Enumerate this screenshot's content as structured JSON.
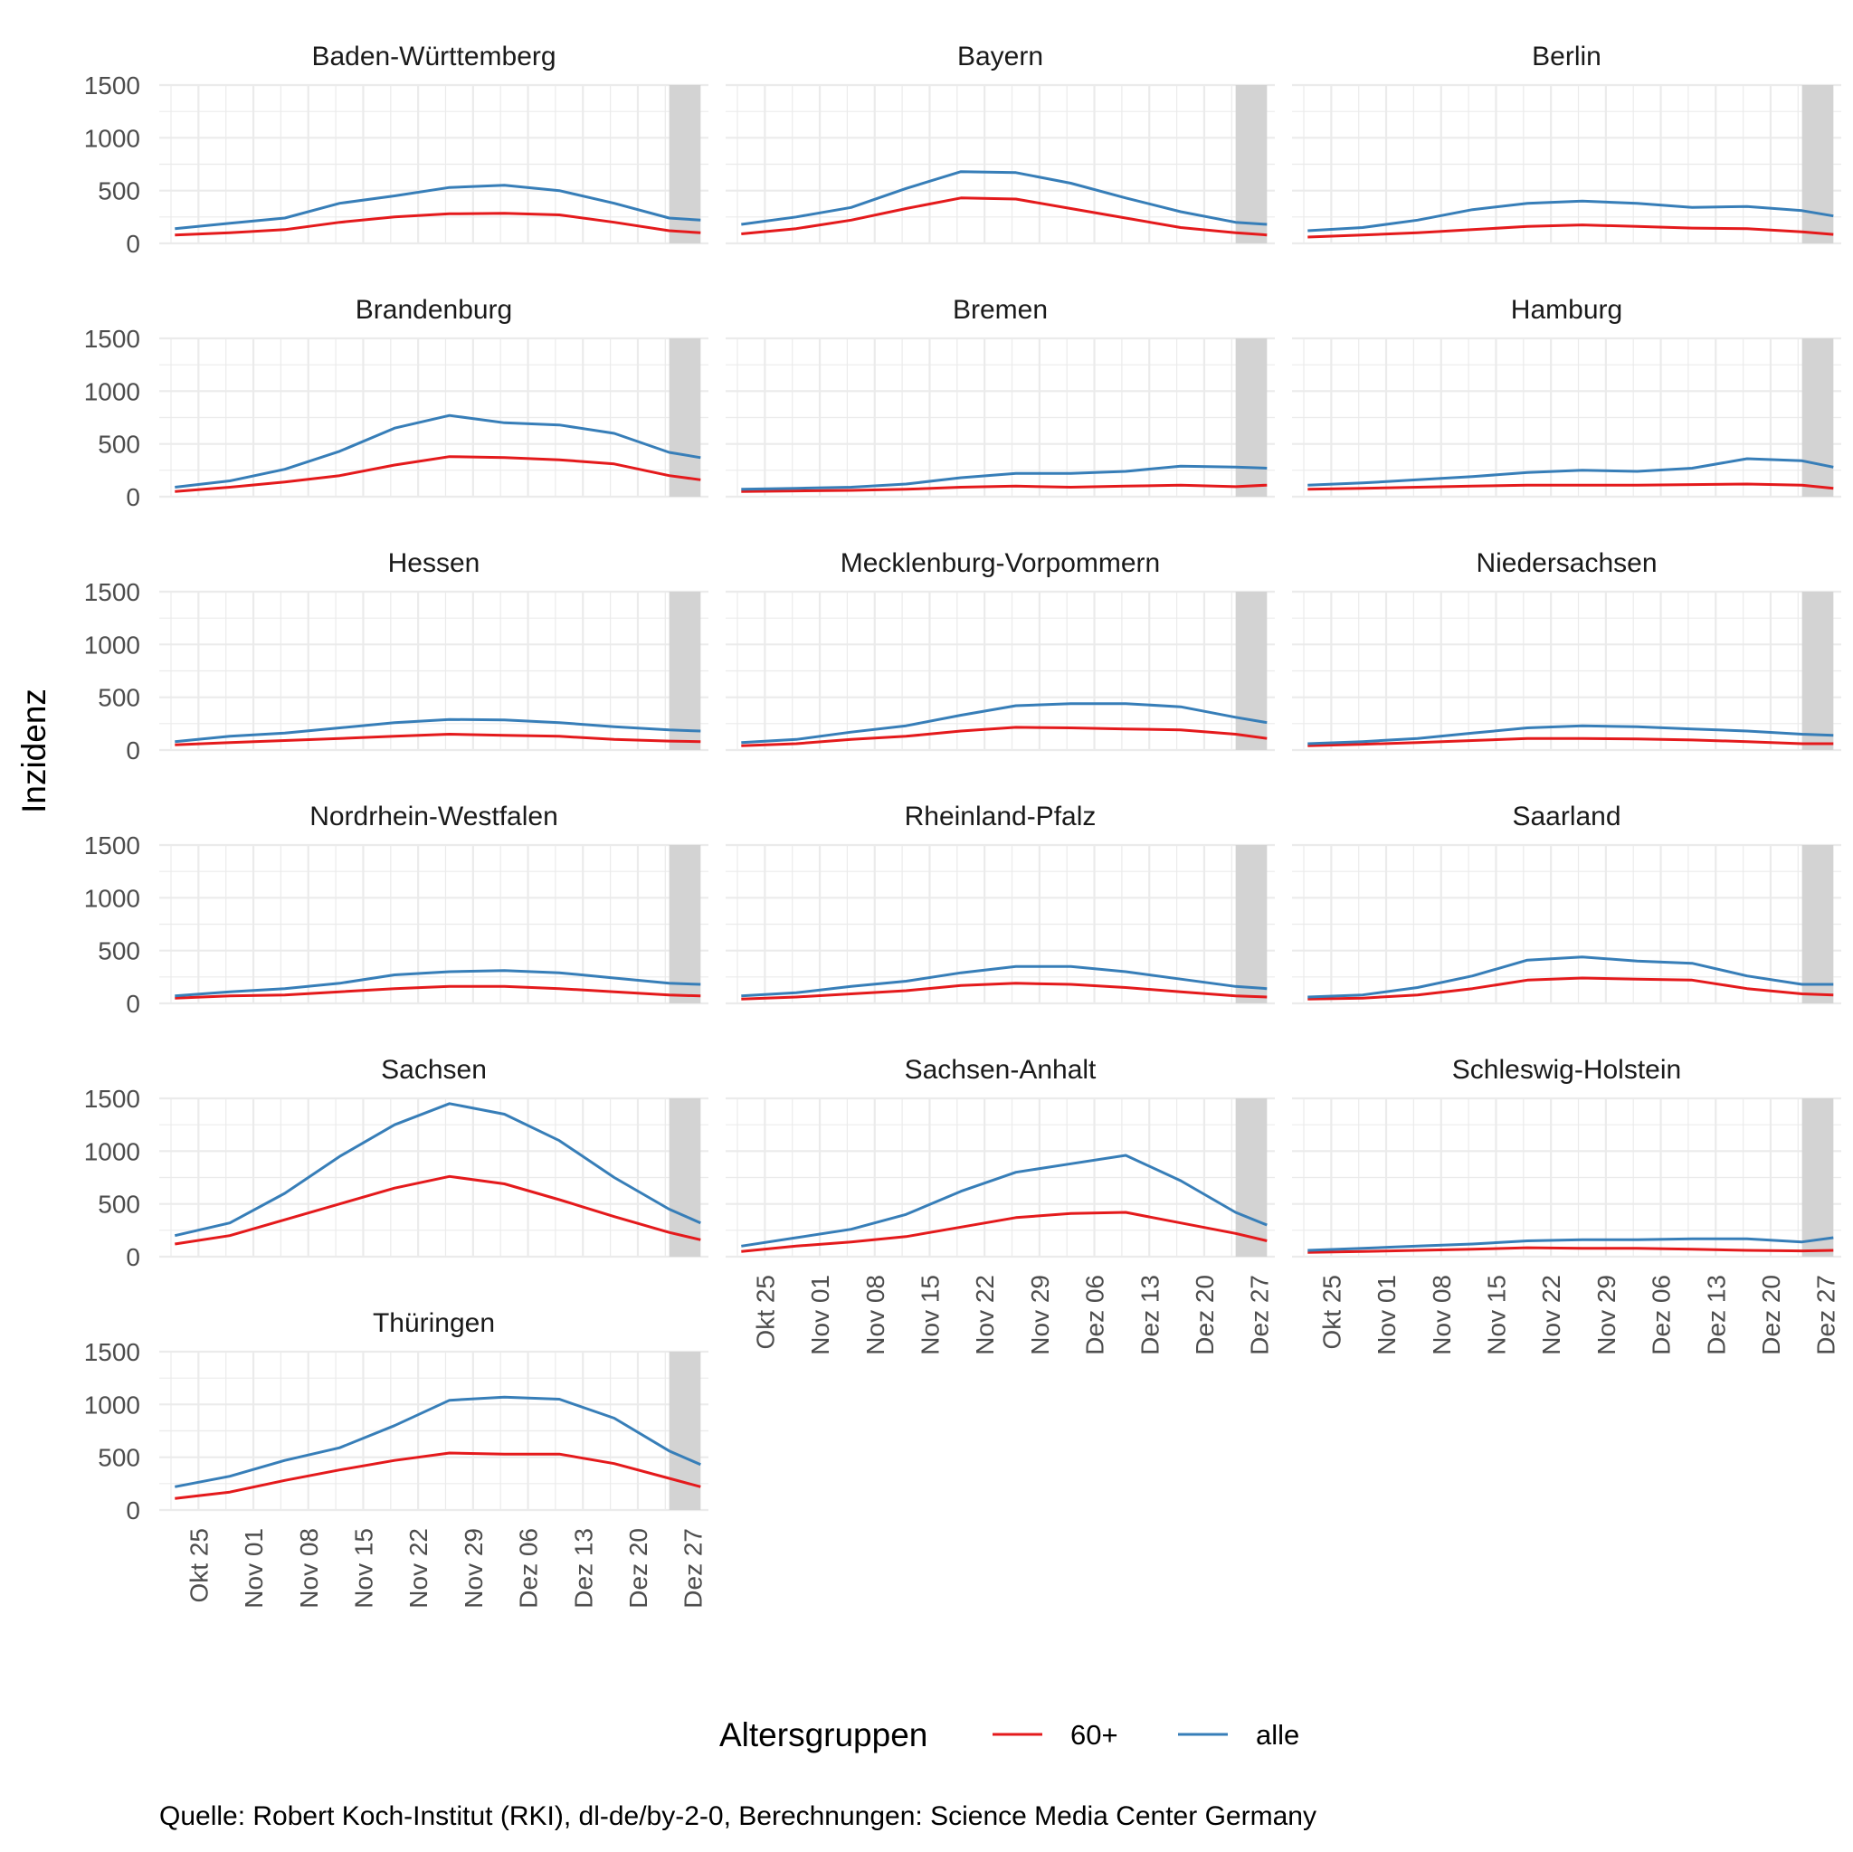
{
  "figure": {
    "ylabel": "Inzidenz",
    "legend_title": "Altersgruppen",
    "caption": "Quelle: Robert Koch-Institut (RKI), dl-de/by-2-0, Berechnungen: Science Media Center Germany",
    "colors": {
      "60+": "#e41a1c",
      "alle": "#377eb8",
      "highlight": "#d3d3d3",
      "grid": "#ebebeb",
      "text": "#4d4d4d"
    }
  },
  "chart_data": {
    "type": "line",
    "layout": "facet-grid",
    "x_range": [
      "2021-10-20",
      "2021-12-29"
    ],
    "x_ticks": [
      "Okt 25",
      "Nov 01",
      "Nov 08",
      "Nov 15",
      "Nov 22",
      "Nov 29",
      "Dez 06",
      "Dez 13",
      "Dez 20",
      "Dez 27"
    ],
    "y_ticks": [
      0,
      500,
      1000,
      1500
    ],
    "ylim": [
      0,
      1500
    ],
    "highlight_range": [
      "2021-12-24",
      "2021-12-28"
    ],
    "grid": true,
    "legend_position": "bottom",
    "series_names": [
      "60+",
      "alle"
    ],
    "dates": [
      "2021-10-22",
      "2021-10-29",
      "2021-11-05",
      "2021-11-12",
      "2021-11-19",
      "2021-11-26",
      "2021-12-03",
      "2021-12-10",
      "2021-12-17",
      "2021-12-24",
      "2021-12-28"
    ],
    "panels": [
      {
        "title": "Baden-Württemberg",
        "series": [
          {
            "name": "60+",
            "values": [
              80,
              100,
              130,
              200,
              250,
              280,
              285,
              270,
              200,
              120,
              100
            ]
          },
          {
            "name": "alle",
            "values": [
              140,
              190,
              240,
              380,
              450,
              530,
              550,
              500,
              380,
              240,
              220
            ]
          }
        ]
      },
      {
        "title": "Bayern",
        "series": [
          {
            "name": "60+",
            "values": [
              90,
              140,
              220,
              330,
              430,
              420,
              330,
              240,
              150,
              100,
              80
            ]
          },
          {
            "name": "alle",
            "values": [
              180,
              250,
              340,
              520,
              680,
              670,
              570,
              430,
              300,
              200,
              180
            ]
          }
        ]
      },
      {
        "title": "Berlin",
        "series": [
          {
            "name": "60+",
            "values": [
              60,
              80,
              100,
              130,
              160,
              175,
              160,
              145,
              140,
              110,
              85
            ]
          },
          {
            "name": "alle",
            "values": [
              120,
              150,
              220,
              320,
              380,
              400,
              380,
              340,
              350,
              310,
              260
            ]
          }
        ]
      },
      {
        "title": "Brandenburg",
        "series": [
          {
            "name": "60+",
            "values": [
              50,
              90,
              140,
              200,
              300,
              380,
              370,
              350,
              310,
              200,
              160
            ]
          },
          {
            "name": "alle",
            "values": [
              90,
              150,
              260,
              430,
              650,
              770,
              700,
              680,
              600,
              420,
              370
            ]
          }
        ]
      },
      {
        "title": "Bremen",
        "series": [
          {
            "name": "60+",
            "values": [
              50,
              55,
              60,
              70,
              90,
              100,
              90,
              100,
              110,
              95,
              110
            ]
          },
          {
            "name": "alle",
            "values": [
              70,
              80,
              90,
              120,
              180,
              220,
              220,
              240,
              290,
              280,
              270
            ]
          }
        ]
      },
      {
        "title": "Hamburg",
        "series": [
          {
            "name": "60+",
            "values": [
              70,
              80,
              90,
              100,
              110,
              110,
              110,
              115,
              120,
              110,
              80
            ]
          },
          {
            "name": "alle",
            "values": [
              110,
              130,
              160,
              190,
              230,
              250,
              240,
              270,
              360,
              340,
              280
            ]
          }
        ]
      },
      {
        "title": "Hessen",
        "series": [
          {
            "name": "60+",
            "values": [
              50,
              70,
              90,
              110,
              130,
              150,
              140,
              130,
              100,
              85,
              80
            ]
          },
          {
            "name": "alle",
            "values": [
              80,
              130,
              160,
              210,
              260,
              290,
              285,
              260,
              220,
              190,
              180
            ]
          }
        ]
      },
      {
        "title": "Mecklenburg-Vorpommern",
        "series": [
          {
            "name": "60+",
            "values": [
              40,
              60,
              100,
              130,
              180,
              215,
              210,
              200,
              190,
              150,
              110
            ]
          },
          {
            "name": "alle",
            "values": [
              70,
              100,
              170,
              230,
              330,
              420,
              440,
              440,
              410,
              310,
              260
            ]
          }
        ]
      },
      {
        "title": "Niedersachsen",
        "series": [
          {
            "name": "60+",
            "values": [
              40,
              55,
              70,
              90,
              110,
              110,
              105,
              95,
              80,
              60,
              60
            ]
          },
          {
            "name": "alle",
            "values": [
              60,
              80,
              110,
              160,
              210,
              230,
              220,
              200,
              180,
              150,
              140
            ]
          }
        ]
      },
      {
        "title": "Nordrhein-Westfalen",
        "series": [
          {
            "name": "60+",
            "values": [
              50,
              70,
              80,
              110,
              140,
              160,
              160,
              140,
              110,
              80,
              70
            ]
          },
          {
            "name": "alle",
            "values": [
              70,
              110,
              140,
              190,
              270,
              300,
              310,
              290,
              240,
              190,
              180
            ]
          }
        ]
      },
      {
        "title": "Rheinland-Pfalz",
        "series": [
          {
            "name": "60+",
            "values": [
              40,
              60,
              90,
              120,
              170,
              190,
              180,
              150,
              110,
              70,
              60
            ]
          },
          {
            "name": "alle",
            "values": [
              70,
              100,
              160,
              210,
              290,
              350,
              350,
              300,
              230,
              160,
              140
            ]
          }
        ]
      },
      {
        "title": "Saarland",
        "series": [
          {
            "name": "60+",
            "values": [
              40,
              50,
              80,
              140,
              220,
              240,
              230,
              220,
              140,
              90,
              80
            ]
          },
          {
            "name": "alle",
            "values": [
              60,
              80,
              150,
              260,
              410,
              440,
              400,
              380,
              260,
              180,
              180
            ]
          }
        ]
      },
      {
        "title": "Sachsen",
        "series": [
          {
            "name": "60+",
            "values": [
              120,
              200,
              350,
              500,
              650,
              760,
              690,
              540,
              380,
              230,
              160
            ]
          },
          {
            "name": "alle",
            "values": [
              200,
              320,
              600,
              950,
              1250,
              1450,
              1350,
              1100,
              750,
              450,
              320
            ]
          }
        ]
      },
      {
        "title": "Sachsen-Anhalt",
        "series": [
          {
            "name": "60+",
            "values": [
              50,
              100,
              140,
              190,
              280,
              370,
              410,
              420,
              320,
              220,
              150
            ]
          },
          {
            "name": "alle",
            "values": [
              100,
              180,
              260,
              400,
              620,
              800,
              880,
              960,
              720,
              420,
              300
            ]
          }
        ]
      },
      {
        "title": "Schleswig-Holstein",
        "series": [
          {
            "name": "60+",
            "values": [
              40,
              50,
              60,
              70,
              85,
              80,
              80,
              70,
              60,
              55,
              60
            ]
          },
          {
            "name": "alle",
            "values": [
              60,
              80,
              100,
              120,
              150,
              160,
              160,
              170,
              170,
              140,
              180
            ]
          }
        ]
      },
      {
        "title": "Thüringen",
        "series": [
          {
            "name": "60+",
            "values": [
              110,
              170,
              280,
              380,
              470,
              540,
              530,
              530,
              440,
              300,
              220
            ]
          },
          {
            "name": "alle",
            "values": [
              220,
              320,
              470,
              590,
              800,
              1040,
              1070,
              1050,
              870,
              560,
              430
            ]
          }
        ]
      }
    ]
  }
}
